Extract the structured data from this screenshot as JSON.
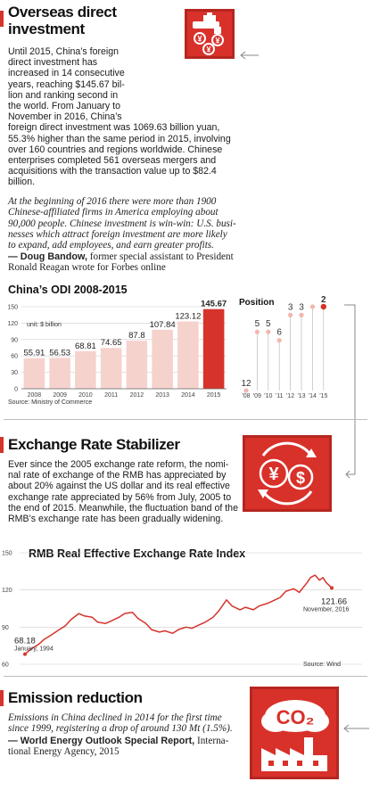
{
  "sections": {
    "odi": {
      "title": "Overseas direct investment",
      "body_lines": [
        "Until 2015, China’s foreign",
        "direct investment has",
        "increased in 14 consecutive",
        "years, reaching $145.67 bil-",
        "lion and ranking second in",
        "the world. From January to",
        "November in 2016, China’s",
        "foreign direct investment was 1069.63 billion yuan,",
        "55.3% higher than the same period in 2015, involving",
        "over 160 countries and regions worldwide. Chinese",
        "enterprises completed 561 overseas mergers and",
        "acquisitions with the transaction value up to $82.4",
        "billion."
      ],
      "quote_lines": [
        "At the beginning of 2016 there were more than 1900",
        "Chinese-affiliated firms in America employing about",
        "90,000 people. Chinese investment is win-win: U.S. busi-",
        "nesses which attract foreign investment are more likely",
        "to expand, add employees, and earn greater profits."
      ],
      "source_name": "— Doug Bandow,",
      "source_rest1": " former special assistant to President",
      "source_rest2": "Ronald Reagan wrote for Forbes online"
    },
    "exchange": {
      "title": "Exchange Rate Stabilizer",
      "body_lines": [
        "Ever since the 2005 exchange rate reform, the nomi-",
        "nal rate of exchange of the RMB has appreciated by",
        "about 20% against the US dollar and its real effective",
        "exchange rate appreciated by 56% from July, 2005 to",
        "the end of 2015. Meanwhile, the fluctuation band of the",
        "RMB’s exchange rate has been gradually widening."
      ]
    },
    "emission": {
      "title": "Emission reduction",
      "quote_lines": [
        "Emissions in China declined in 2014 for the first time",
        "since 1999, registering a drop of around 130 Mt (1.5%)."
      ],
      "source_name": "— World Energy Outlook Special Report,",
      "source_rest1": " Interna-",
      "source_rest2": "tional Energy Agency, 2015",
      "icon_text": "CO₂"
    }
  },
  "chart_data": [
    {
      "type": "bar",
      "title": "China’s ODI 2008-2015",
      "unit_label": "unit: $ billion",
      "categories": [
        "2008",
        "2009",
        "2010",
        "2011",
        "2012",
        "2013",
        "2014",
        "2015"
      ],
      "values": [
        55.91,
        56.53,
        68.81,
        74.65,
        87.8,
        107.84,
        123.12,
        145.67
      ],
      "value_labels": [
        "55.91",
        "56.53",
        "68.81",
        "74.65",
        "87.8",
        "107.84",
        "123.12",
        "145.67"
      ],
      "yticks": [
        "0",
        "30",
        "60",
        "90",
        "120",
        "150"
      ],
      "ylim": [
        0,
        150
      ],
      "source": "Source: Ministry of Commerce",
      "colors": {
        "bar": "#f6d2cd",
        "highlight": "#d6332b",
        "grid": "#cfcfcf"
      }
    },
    {
      "type": "scatter",
      "title": "Position",
      "categories": [
        "'08",
        "'09",
        "'10",
        "'11",
        "'12",
        "'13",
        "'14",
        "'15"
      ],
      "values": [
        12,
        5,
        5,
        6,
        3,
        3,
        2,
        2
      ],
      "value_labels": [
        "12",
        "5",
        "5",
        "6",
        "3",
        "3",
        "",
        "2"
      ],
      "ylim_note": "rank, 1 at top",
      "colors": {
        "point": "#f2b6ae",
        "highlight": "#d6332b"
      }
    },
    {
      "type": "line",
      "title": "RMB Real Effective Exchange Rate Index",
      "x_range": [
        "1994-01",
        "2016-11"
      ],
      "yticks": [
        "60",
        "90",
        "120",
        "150"
      ],
      "ylim": [
        60,
        150
      ],
      "points": [
        [
          "1994-01",
          68.18
        ],
        [
          "1994-06",
          72
        ],
        [
          "1995-01",
          76
        ],
        [
          "1995-06",
          80
        ],
        [
          "1996-01",
          84
        ],
        [
          "1996-06",
          87
        ],
        [
          "1997-01",
          91
        ],
        [
          "1997-06",
          96
        ],
        [
          "1998-01",
          101
        ],
        [
          "1998-06",
          99
        ],
        [
          "1999-01",
          98
        ],
        [
          "1999-06",
          94
        ],
        [
          "2000-01",
          93
        ],
        [
          "2000-06",
          95
        ],
        [
          "2001-01",
          98
        ],
        [
          "2001-06",
          101
        ],
        [
          "2002-01",
          102
        ],
        [
          "2002-06",
          97
        ],
        [
          "2003-01",
          93
        ],
        [
          "2003-06",
          88
        ],
        [
          "2004-01",
          86
        ],
        [
          "2004-06",
          87
        ],
        [
          "2005-01",
          85
        ],
        [
          "2005-06",
          88
        ],
        [
          "2006-01",
          90
        ],
        [
          "2006-06",
          89
        ],
        [
          "2007-01",
          92
        ],
        [
          "2007-06",
          94
        ],
        [
          "2008-01",
          98
        ],
        [
          "2008-06",
          103
        ],
        [
          "2009-01",
          112
        ],
        [
          "2009-06",
          107
        ],
        [
          "2010-01",
          104
        ],
        [
          "2010-06",
          106
        ],
        [
          "2011-01",
          104
        ],
        [
          "2011-06",
          107
        ],
        [
          "2012-01",
          109
        ],
        [
          "2012-06",
          111
        ],
        [
          "2013-01",
          114
        ],
        [
          "2013-06",
          119
        ],
        [
          "2014-01",
          121
        ],
        [
          "2014-06",
          118
        ],
        [
          "2015-01",
          126
        ],
        [
          "2015-04",
          130
        ],
        [
          "2015-08",
          132
        ],
        [
          "2015-12",
          128
        ],
        [
          "2016-03",
          130
        ],
        [
          "2016-06",
          126
        ],
        [
          "2016-11",
          121.66
        ]
      ],
      "start_label": "68.18",
      "start_date": "January, 1994",
      "end_label": "121.66",
      "end_date": "November, 2016",
      "source": "Source: Wind",
      "colors": {
        "line": "#d6332b",
        "grid": "#cfcfcf"
      }
    }
  ]
}
